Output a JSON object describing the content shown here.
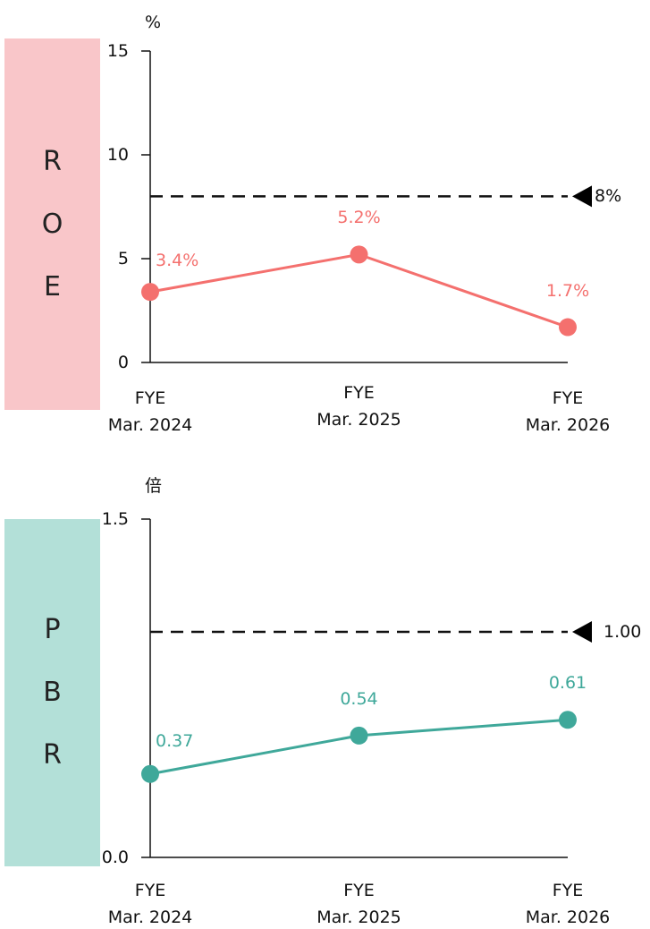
{
  "chart_data": [
    {
      "type": "line",
      "side_label": "ROE",
      "unit": "%",
      "categories": [
        "FYE\nMar. 2024",
        "FYE\nMar. 2025",
        "FYE\nMar. 2026"
      ],
      "series": [
        {
          "color": "#f4706e",
          "values": [
            3.4,
            5.2,
            1.7
          ],
          "value_labels": [
            "3.4%",
            "5.2%",
            "1.7%"
          ]
        }
      ],
      "ylim": [
        0,
        15
      ],
      "yticks": [
        0,
        5,
        10,
        15
      ],
      "reference": {
        "value": 8,
        "label": "8%"
      }
    },
    {
      "type": "line",
      "side_label": "PBR",
      "unit": "倍",
      "categories": [
        "FYE\nMar. 2024",
        "FYE\nMar. 2025",
        "FYE\nMar. 2026"
      ],
      "series": [
        {
          "color": "#3fa89a",
          "values": [
            0.37,
            0.54,
            0.61
          ]
        }
      ],
      "ylim": [
        0,
        1.5
      ],
      "yticks": [
        {
          "value": 0,
          "label": "0.0"
        },
        1.5
      ],
      "reference": {
        "value": 1.0,
        "label": "1.00"
      }
    }
  ]
}
